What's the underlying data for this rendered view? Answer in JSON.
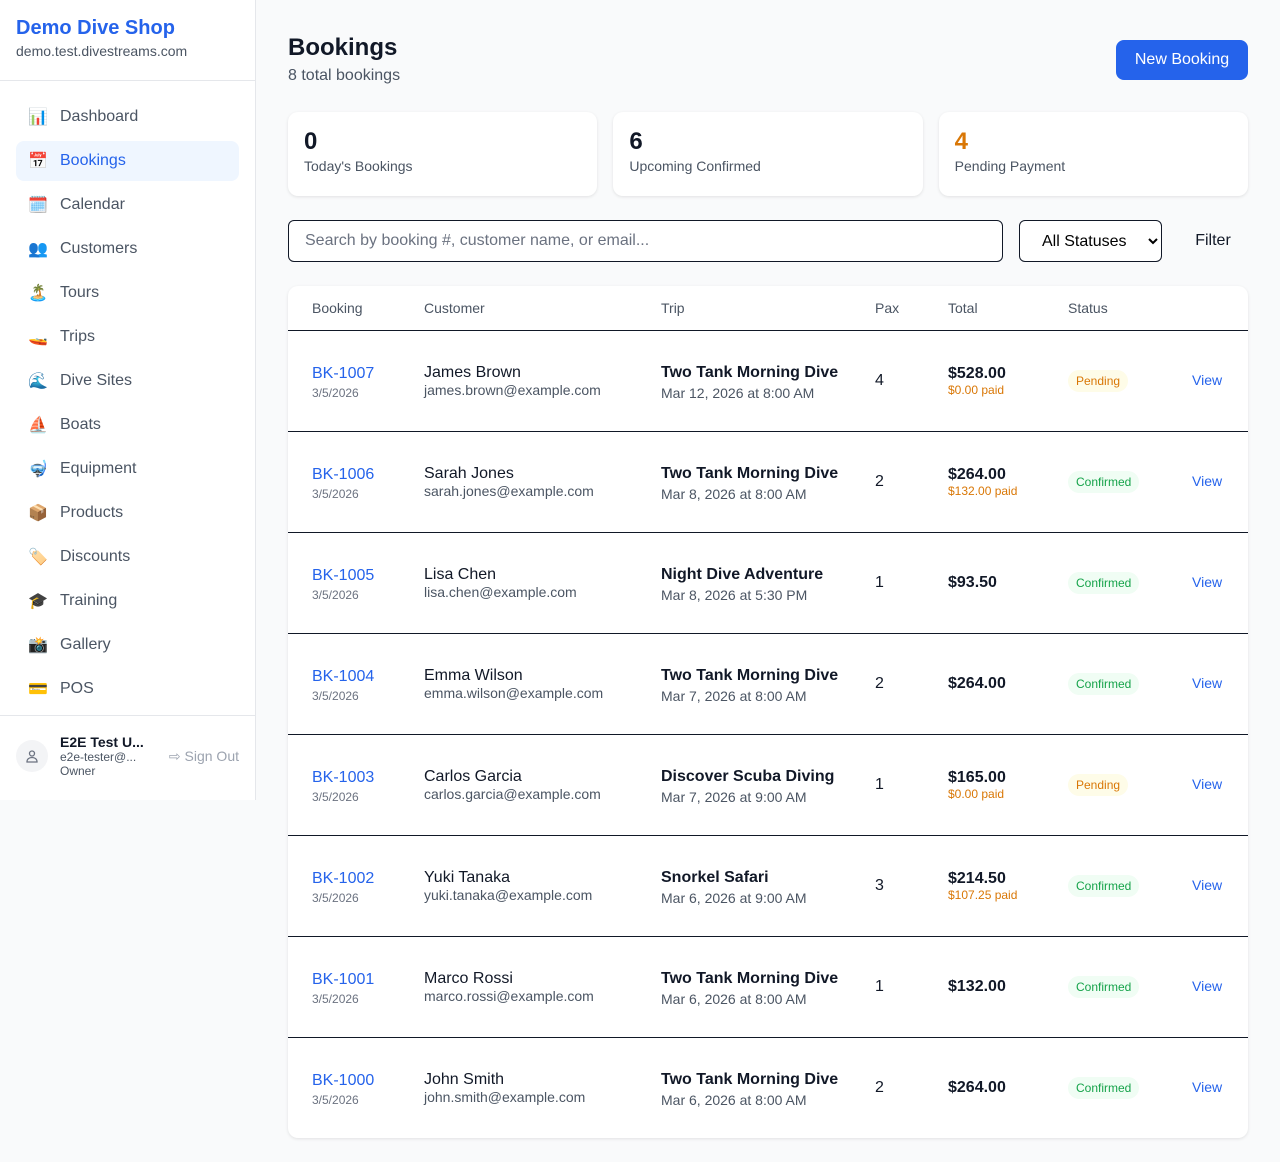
{
  "sidebar": {
    "brand": "Demo Dive Shop",
    "domain": "demo.test.divestreams.com",
    "items": [
      {
        "label": "Dashboard",
        "icon": "📊",
        "name": "bar-chart-icon"
      },
      {
        "label": "Bookings",
        "icon": "📅",
        "name": "calendar-icon",
        "active": true
      },
      {
        "label": "Calendar",
        "icon": "🗓️",
        "name": "spiral-calendar-icon"
      },
      {
        "label": "Customers",
        "icon": "👥",
        "name": "users-icon"
      },
      {
        "label": "Tours",
        "icon": "🏝️",
        "name": "island-icon"
      },
      {
        "label": "Trips",
        "icon": "🚤",
        "name": "boat-icon"
      },
      {
        "label": "Dive Sites",
        "icon": "🌊",
        "name": "wave-icon"
      },
      {
        "label": "Boats",
        "icon": "⛵",
        "name": "sailboat-icon"
      },
      {
        "label": "Equipment",
        "icon": "🤿",
        "name": "diving-mask-icon"
      },
      {
        "label": "Products",
        "icon": "📦",
        "name": "package-icon"
      },
      {
        "label": "Discounts",
        "icon": "🏷️",
        "name": "tag-icon"
      },
      {
        "label": "Training",
        "icon": "🎓",
        "name": "graduation-cap-icon"
      },
      {
        "label": "Gallery",
        "icon": "📸",
        "name": "camera-icon"
      },
      {
        "label": "POS",
        "icon": "💳",
        "name": "credit-card-icon"
      }
    ],
    "user": {
      "name": "E2E Test U...",
      "email": "e2e-tester@...",
      "role": "Owner",
      "sign_out": "Sign Out"
    }
  },
  "header": {
    "title": "Bookings",
    "subtitle": "8 total bookings",
    "new_button": "New Booking"
  },
  "stats": [
    {
      "value": "0",
      "label": "Today's Bookings",
      "color": "#111827"
    },
    {
      "value": "6",
      "label": "Upcoming Confirmed",
      "color": "#111827"
    },
    {
      "value": "4",
      "label": "Pending Payment",
      "color": "#d97706"
    }
  ],
  "filters": {
    "search_placeholder": "Search by booking #, customer name, or email...",
    "status_selected": "All Statuses",
    "filter_button": "Filter"
  },
  "table": {
    "headers": [
      "Booking",
      "Customer",
      "Trip",
      "Pax",
      "Total",
      "Status",
      ""
    ],
    "rows": [
      {
        "id": "BK-1007",
        "date": "3/5/2026",
        "customer": "James Brown",
        "email": "james.brown@example.com",
        "trip": "Two Tank Morning Dive",
        "when": "Mar 12, 2026 at 8:00 AM",
        "pax": "4",
        "total": "$528.00",
        "paid": "$0.00 paid",
        "status": "Pending",
        "action": "View"
      },
      {
        "id": "BK-1006",
        "date": "3/5/2026",
        "customer": "Sarah Jones",
        "email": "sarah.jones@example.com",
        "trip": "Two Tank Morning Dive",
        "when": "Mar 8, 2026 at 8:00 AM",
        "pax": "2",
        "total": "$264.00",
        "paid": "$132.00 paid",
        "status": "Confirmed",
        "action": "View"
      },
      {
        "id": "BK-1005",
        "date": "3/5/2026",
        "customer": "Lisa Chen",
        "email": "lisa.chen@example.com",
        "trip": "Night Dive Adventure",
        "when": "Mar 8, 2026 at 5:30 PM",
        "pax": "1",
        "total": "$93.50",
        "paid": "",
        "status": "Confirmed",
        "action": "View"
      },
      {
        "id": "BK-1004",
        "date": "3/5/2026",
        "customer": "Emma Wilson",
        "email": "emma.wilson@example.com",
        "trip": "Two Tank Morning Dive",
        "when": "Mar 7, 2026 at 8:00 AM",
        "pax": "2",
        "total": "$264.00",
        "paid": "",
        "status": "Confirmed",
        "action": "View"
      },
      {
        "id": "BK-1003",
        "date": "3/5/2026",
        "customer": "Carlos Garcia",
        "email": "carlos.garcia@example.com",
        "trip": "Discover Scuba Diving",
        "when": "Mar 7, 2026 at 9:00 AM",
        "pax": "1",
        "total": "$165.00",
        "paid": "$0.00 paid",
        "status": "Pending",
        "action": "View"
      },
      {
        "id": "BK-1002",
        "date": "3/5/2026",
        "customer": "Yuki Tanaka",
        "email": "yuki.tanaka@example.com",
        "trip": "Snorkel Safari",
        "when": "Mar 6, 2026 at 9:00 AM",
        "pax": "3",
        "total": "$214.50",
        "paid": "$107.25 paid",
        "status": "Confirmed",
        "action": "View"
      },
      {
        "id": "BK-1001",
        "date": "3/5/2026",
        "customer": "Marco Rossi",
        "email": "marco.rossi@example.com",
        "trip": "Two Tank Morning Dive",
        "when": "Mar 6, 2026 at 8:00 AM",
        "pax": "1",
        "total": "$132.00",
        "paid": "",
        "status": "Confirmed",
        "action": "View"
      },
      {
        "id": "BK-1000",
        "date": "3/5/2026",
        "customer": "John Smith",
        "email": "john.smith@example.com",
        "trip": "Two Tank Morning Dive",
        "when": "Mar 6, 2026 at 8:00 AM",
        "pax": "2",
        "total": "$264.00",
        "paid": "",
        "status": "Confirmed",
        "action": "View"
      }
    ]
  }
}
